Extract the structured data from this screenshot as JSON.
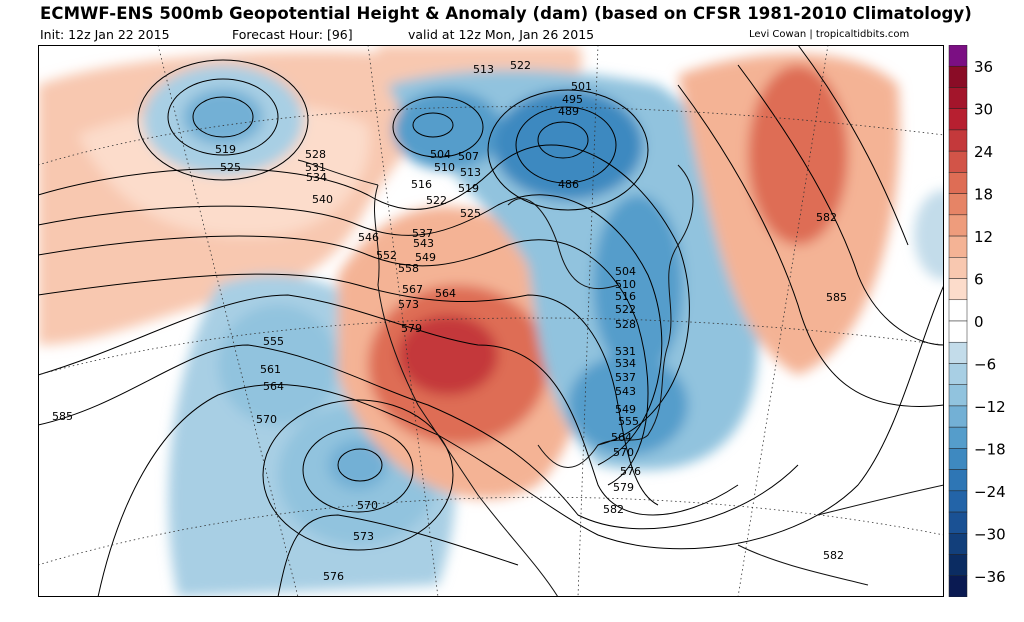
{
  "header": {
    "title": "ECMWF-ENS 500mb Geopotential Height & Anomaly (dam) (based on CFSR 1981-2010 Climatology)",
    "init": "Init: 12z Jan 22 2015",
    "forecast_hour": "Forecast Hour: [96]",
    "valid": "valid at 12z Mon, Jan 26 2015",
    "credit": "Levi Cowan | tropicaltidbits.com"
  },
  "colorbar": {
    "labels": [
      "36",
      "30",
      "24",
      "18",
      "12",
      "6",
      "0",
      "−6",
      "−12",
      "−18",
      "−24",
      "−30",
      "−36"
    ],
    "colors": [
      "#7b0f83",
      "#8a0c26",
      "#a3152b",
      "#b71f30",
      "#c4393b",
      "#d25448",
      "#de6d55",
      "#e68466",
      "#ee9c7c",
      "#f4b395",
      "#f8c8b0",
      "#fcdccb",
      "#ffffff",
      "#ffffff",
      "#c3dcea",
      "#a8cfe4",
      "#91c3de",
      "#73b0d5",
      "#559dcb",
      "#3e89c0",
      "#2e76b5",
      "#2364a8",
      "#1a5194",
      "#123f7b",
      "#0b2c62",
      "#0a1a52"
    ]
  },
  "contour_labels": [
    "522",
    "519",
    "525",
    "528",
    "531",
    "534",
    "540",
    "546",
    "552",
    "558",
    "567",
    "573",
    "579",
    "564",
    "549",
    "543",
    "537",
    "513",
    "501",
    "495",
    "489",
    "486",
    "504",
    "510",
    "507",
    "513",
    "519",
    "522",
    "525",
    "516",
    "504",
    "510",
    "516",
    "522",
    "528",
    "531",
    "534",
    "537",
    "543",
    "549",
    "555",
    "564",
    "570",
    "576",
    "579",
    "582",
    "582",
    "585",
    "555",
    "561",
    "564",
    "570",
    "585",
    "570",
    "573",
    "576",
    "582"
  ]
}
